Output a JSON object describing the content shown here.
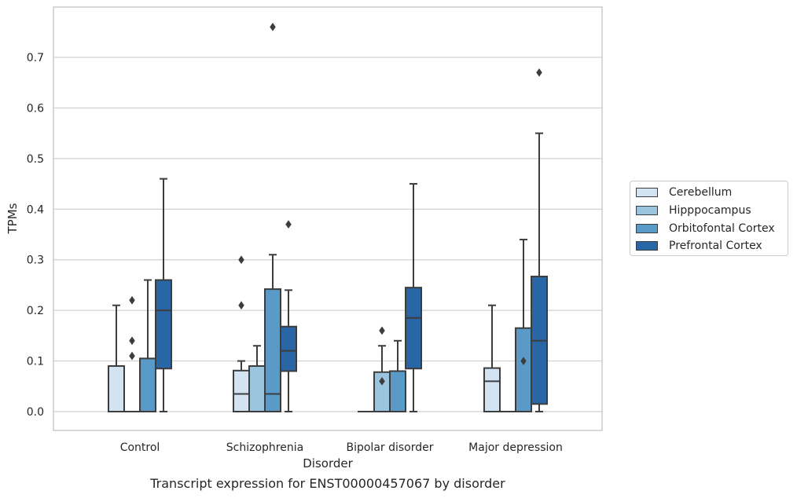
{
  "chart_data": {
    "type": "box",
    "xlabel": "Disorder",
    "ylabel": "TPMs",
    "caption": "Transcript expression for ENST00000457067 by disorder",
    "categories": [
      "Control",
      "Schizophrenia",
      "Bipolar disorder",
      "Major depression"
    ],
    "ylim": [
      -0.037,
      0.8
    ],
    "yticks": [
      "0.0",
      "0.1",
      "0.2",
      "0.3",
      "0.4",
      "0.5",
      "0.6",
      "0.7"
    ],
    "grid": "horizontal",
    "legend_position": "right",
    "series": [
      {
        "name": "Cerebellum",
        "color": "#d3e3f2",
        "boxes": [
          {
            "whislo": 0.0,
            "q1": 0.0,
            "med": 0.0,
            "q3": 0.09,
            "whishi": 0.21,
            "fliers": []
          },
          {
            "whislo": 0.0,
            "q1": 0.0,
            "med": 0.035,
            "q3": 0.081,
            "whishi": 0.1,
            "fliers": [
              0.21,
              0.3
            ]
          },
          {
            "whislo": 0.0,
            "q1": 0.0,
            "med": 0.0,
            "q3": 0.0,
            "whishi": 0.0,
            "fliers": []
          },
          {
            "whislo": 0.0,
            "q1": 0.0,
            "med": 0.06,
            "q3": 0.086,
            "whishi": 0.21,
            "fliers": []
          }
        ]
      },
      {
        "name": "Hipppocampus",
        "color": "#9bc5de",
        "boxes": [
          {
            "whislo": 0.0,
            "q1": 0.0,
            "med": 0.0,
            "q3": 0.0,
            "whishi": 0.0,
            "fliers": [
              0.11,
              0.14,
              0.22
            ]
          },
          {
            "whislo": 0.0,
            "q1": 0.0,
            "med": 0.0,
            "q3": 0.09,
            "whishi": 0.13,
            "fliers": []
          },
          {
            "whislo": 0.0,
            "q1": 0.0,
            "med": 0.0,
            "q3": 0.078,
            "whishi": 0.13,
            "fliers": [
              0.06,
              0.16
            ]
          },
          {
            "whislo": 0.0,
            "q1": 0.0,
            "med": 0.0,
            "q3": 0.0,
            "whishi": 0.0,
            "fliers": []
          }
        ]
      },
      {
        "name": "Orbitofontal Cortex",
        "color": "#5a9ac8",
        "boxes": [
          {
            "whislo": 0.0,
            "q1": 0.0,
            "med": 0.0,
            "q3": 0.105,
            "whishi": 0.26,
            "fliers": []
          },
          {
            "whislo": 0.0,
            "q1": 0.0,
            "med": 0.035,
            "q3": 0.242,
            "whishi": 0.31,
            "fliers": [
              0.76
            ]
          },
          {
            "whislo": 0.0,
            "q1": 0.0,
            "med": 0.0,
            "q3": 0.08,
            "whishi": 0.14,
            "fliers": []
          },
          {
            "whislo": 0.0,
            "q1": 0.0,
            "med": 0.0,
            "q3": 0.165,
            "whishi": 0.34,
            "fliers": [
              0.1
            ]
          }
        ]
      },
      {
        "name": "Prefrontal Cortex",
        "color": "#2866a6",
        "boxes": [
          {
            "whislo": 0.0,
            "q1": 0.085,
            "med": 0.2,
            "q3": 0.26,
            "whishi": 0.46,
            "fliers": []
          },
          {
            "whislo": 0.0,
            "q1": 0.08,
            "med": 0.12,
            "q3": 0.168,
            "whishi": 0.24,
            "fliers": [
              0.37
            ]
          },
          {
            "whislo": 0.0,
            "q1": 0.085,
            "med": 0.185,
            "q3": 0.245,
            "whishi": 0.45,
            "fliers": []
          },
          {
            "whislo": 0.0,
            "q1": 0.015,
            "med": 0.14,
            "q3": 0.267,
            "whishi": 0.55,
            "fliers": [
              0.67
            ]
          }
        ]
      }
    ]
  }
}
